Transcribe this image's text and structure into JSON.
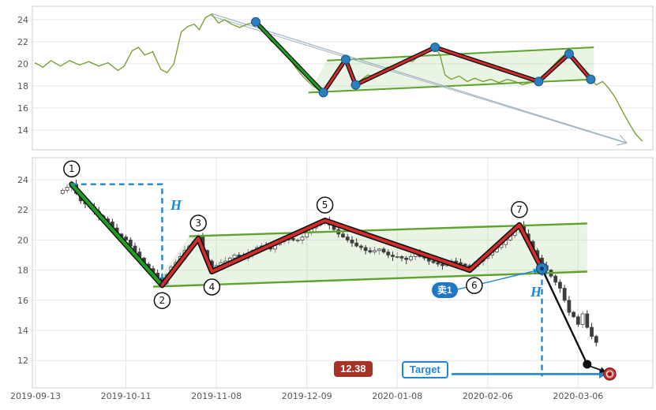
{
  "colors": {
    "background": "#ffffff",
    "grid": "#e7e7e7",
    "panel_border": "#cccccc",
    "axis_text": "#555555",
    "price_line": "#7aa238",
    "zigzag_red": "#d42b2b",
    "zigzag_outline": "#111111",
    "impulse_green": "#1f9e23",
    "channel_green": "#5ea32e",
    "channel_fill": "rgba(160,205,130,0.22)",
    "pivot_dot": "#2a7fc1",
    "annotation_blue": "#1e88d2",
    "candle_up_fill": "#ffffff",
    "candle_down_fill": "#3d3d3d",
    "candle_stroke": "#444444",
    "projection_black": "#111111",
    "target_marker_red": "#d63a3a",
    "badge_price_bg": "#a93226",
    "badge_sell_bg": "#1e78c8",
    "trend_arrow": "#9fb4c0"
  },
  "annotations": {
    "h_label": "H",
    "sell_badge": "卖1",
    "target_badge": "Target",
    "price_badge": "12.38"
  },
  "chart_data": [
    {
      "id": "overview",
      "type": "line",
      "ylim": [
        12.2,
        25.2
      ],
      "yticks": [
        24,
        22,
        20,
        18,
        16,
        14
      ],
      "xlim": [
        0,
        100
      ],
      "price_line": [
        [
          0.4,
          20.1
        ],
        [
          1.7,
          19.7
        ],
        [
          3.0,
          20.3
        ],
        [
          4.5,
          19.8
        ],
        [
          6.0,
          20.3
        ],
        [
          7.6,
          19.9
        ],
        [
          9.1,
          20.2
        ],
        [
          10.7,
          19.8
        ],
        [
          12.2,
          20.1
        ],
        [
          13.8,
          19.4
        ],
        [
          14.8,
          19.8
        ],
        [
          16.1,
          21.2
        ],
        [
          17.1,
          21.5
        ],
        [
          18.1,
          20.8
        ],
        [
          19.4,
          21.1
        ],
        [
          20.7,
          19.5
        ],
        [
          21.7,
          19.2
        ],
        [
          22.8,
          20.0
        ],
        [
          24.0,
          22.9
        ],
        [
          25.1,
          23.4
        ],
        [
          26.1,
          23.6
        ],
        [
          26.9,
          23.1
        ],
        [
          27.9,
          24.2
        ],
        [
          28.9,
          24.5
        ],
        [
          30.0,
          23.7
        ],
        [
          31.0,
          24.0
        ],
        [
          32.1,
          23.6
        ],
        [
          33.4,
          23.3
        ],
        [
          34.7,
          23.6
        ],
        [
          36.0,
          23.8
        ],
        [
          37.3,
          22.9
        ],
        [
          38.6,
          22.0
        ],
        [
          39.8,
          21.5
        ],
        [
          41.1,
          20.8
        ],
        [
          42.4,
          19.7
        ],
        [
          43.7,
          18.8
        ],
        [
          45.0,
          18.1
        ],
        [
          46.0,
          17.7
        ],
        [
          46.9,
          17.4
        ],
        [
          47.9,
          18.3
        ],
        [
          49.0,
          19.3
        ],
        [
          49.7,
          20.0
        ],
        [
          50.5,
          20.4
        ],
        [
          51.3,
          19.0
        ],
        [
          52.1,
          18.1
        ],
        [
          53.1,
          18.6
        ],
        [
          54.1,
          19.0
        ],
        [
          55.1,
          18.8
        ],
        [
          56.2,
          19.3
        ],
        [
          57.2,
          19.7
        ],
        [
          58.2,
          19.5
        ],
        [
          59.3,
          20.0
        ],
        [
          60.3,
          20.3
        ],
        [
          61.3,
          20.2
        ],
        [
          62.3,
          20.8
        ],
        [
          63.4,
          21.2
        ],
        [
          64.9,
          21.5
        ],
        [
          65.7,
          20.8
        ],
        [
          66.5,
          19.0
        ],
        [
          67.5,
          18.6
        ],
        [
          68.8,
          18.9
        ],
        [
          70.1,
          18.4
        ],
        [
          71.3,
          18.7
        ],
        [
          72.6,
          18.4
        ],
        [
          73.9,
          18.6
        ],
        [
          75.2,
          18.3
        ],
        [
          76.5,
          18.6
        ],
        [
          77.8,
          18.4
        ],
        [
          79.0,
          18.1
        ],
        [
          80.3,
          18.3
        ],
        [
          81.6,
          18.4
        ],
        [
          82.6,
          19.0
        ],
        [
          83.7,
          19.7
        ],
        [
          84.7,
          20.3
        ],
        [
          85.7,
          20.8
        ],
        [
          86.5,
          20.9
        ],
        [
          87.5,
          20.0
        ],
        [
          88.6,
          19.3
        ],
        [
          90.0,
          18.6
        ],
        [
          90.9,
          18.1
        ],
        [
          91.9,
          18.4
        ],
        [
          92.9,
          17.8
        ],
        [
          94.0,
          16.9
        ],
        [
          95.0,
          15.8
        ],
        [
          95.8,
          15.0
        ],
        [
          96.5,
          14.3
        ],
        [
          97.3,
          13.6
        ],
        [
          98.3,
          13.0
        ]
      ],
      "green_segment": [
        [
          36.0,
          23.8
        ],
        [
          46.9,
          17.4
        ]
      ],
      "zigzag": [
        [
          46.9,
          17.4
        ],
        [
          50.5,
          20.4
        ],
        [
          52.1,
          18.1
        ],
        [
          64.9,
          21.5
        ],
        [
          81.6,
          18.4
        ],
        [
          86.5,
          20.9
        ],
        [
          90.0,
          18.6
        ]
      ],
      "pivot_dots": [
        [
          36.0,
          23.8
        ],
        [
          46.9,
          17.4
        ],
        [
          50.5,
          20.4
        ],
        [
          52.1,
          18.1
        ],
        [
          64.9,
          21.5
        ],
        [
          81.6,
          18.4
        ],
        [
          86.5,
          20.9
        ],
        [
          90.0,
          18.6
        ]
      ],
      "channel": {
        "upper": [
          [
            47.5,
            20.3
          ],
          [
            90.5,
            21.5
          ]
        ],
        "lower": [
          [
            44.5,
            17.4
          ],
          [
            90.5,
            18.6
          ]
        ]
      },
      "trend_arrow": [
        [
          28.9,
          24.55
        ],
        [
          95.8,
          12.85
        ]
      ]
    },
    {
      "id": "detail",
      "type": "candlestick",
      "ylim": [
        10.2,
        25.5
      ],
      "yticks": [
        24,
        22,
        20,
        18,
        16,
        14,
        12
      ],
      "xlim": [
        0,
        136
      ],
      "xticks": [
        {
          "i": 0,
          "label": "2019-09-13"
        },
        {
          "i": 20,
          "label": "2019-10-11"
        },
        {
          "i": 40,
          "label": "2019-11-08"
        },
        {
          "i": 60,
          "label": "2019-12-09"
        },
        {
          "i": 80,
          "label": "2020-01-08"
        },
        {
          "i": 100,
          "label": "2020-02-06"
        },
        {
          "i": 120,
          "label": "2020-03-06"
        }
      ],
      "first_candle_index": 6,
      "closes": [
        23.3,
        23.5,
        23.7,
        23.1,
        22.6,
        22.4,
        22.2,
        21.9,
        21.6,
        21.4,
        21.2,
        20.8,
        20.4,
        20.2,
        20.0,
        19.6,
        19.2,
        18.8,
        18.4,
        18.1,
        17.8,
        17.5,
        17.1,
        17.7,
        18.2,
        18.5,
        18.9,
        19.3,
        19.6,
        19.9,
        20.2,
        19.3,
        18.6,
        18.0,
        18.3,
        18.5,
        18.6,
        18.8,
        19.0,
        18.9,
        18.8,
        19.1,
        19.3,
        19.5,
        19.6,
        19.5,
        19.4,
        19.7,
        19.9,
        20.0,
        20.1,
        20.0,
        20.0,
        20.2,
        20.5,
        20.8,
        21.0,
        21.2,
        21.3,
        21.0,
        20.7,
        20.4,
        20.2,
        20.0,
        19.8,
        19.6,
        19.5,
        19.3,
        19.2,
        19.3,
        19.4,
        19.2,
        19.0,
        18.9,
        18.9,
        18.8,
        18.7,
        18.9,
        19.1,
        18.9,
        18.8,
        18.6,
        18.5,
        18.4,
        18.3,
        18.4,
        18.6,
        18.5,
        18.4,
        18.3,
        18.1,
        18.4,
        18.6,
        18.8,
        19.0,
        19.2,
        19.5,
        19.7,
        20.0,
        20.3,
        20.7,
        21.0,
        20.4,
        19.9,
        19.3,
        18.8,
        18.3,
        18.0,
        17.6,
        17.2,
        16.8,
        16.0,
        15.2,
        14.9,
        14.4,
        15.1,
        14.2,
        13.6,
        13.2
      ],
      "wave_points": [
        {
          "n": "1",
          "i": 8,
          "v": 23.7,
          "side": "above"
        },
        {
          "n": "2",
          "i": 28,
          "v": 17.0,
          "side": "below"
        },
        {
          "n": "3",
          "i": 36,
          "v": 20.1,
          "side": "above"
        },
        {
          "n": "4",
          "i": 39,
          "v": 17.9,
          "side": "below"
        },
        {
          "n": "5",
          "i": 64,
          "v": 21.3,
          "side": "above"
        },
        {
          "n": "6",
          "i": 96,
          "v": 18.0,
          "side": "below",
          "dx": 6
        },
        {
          "n": "7",
          "i": 107,
          "v": 21.0,
          "side": "above"
        }
      ],
      "green_segment": [
        [
          8,
          23.7
        ],
        [
          28,
          17.0
        ]
      ],
      "zigzag": [
        [
          28,
          17.0
        ],
        [
          36,
          20.1
        ],
        [
          39,
          17.9
        ],
        [
          64,
          21.3
        ],
        [
          96,
          18.0
        ],
        [
          107,
          21.0
        ],
        [
          112,
          18.1
        ]
      ],
      "endpoint_dot": [
        112,
        18.1
      ],
      "channel": {
        "upper": [
          [
            34,
            20.25
          ],
          [
            122,
            21.1
          ]
        ],
        "lower": [
          [
            26,
            16.9
          ],
          [
            122,
            17.9
          ]
        ]
      },
      "h_measure_1": [
        [
          8,
          23.7
        ],
        [
          28,
          23.7
        ],
        [
          28,
          17.1
        ]
      ],
      "h_measure_2": [
        [
          112,
          18.0
        ],
        [
          112,
          10.95
        ]
      ],
      "sell_pointer": [
        [
          93,
          16.7
        ],
        [
          111.2,
          18.0
        ]
      ],
      "target_arrow": [
        [
          92,
          11.1
        ],
        [
          126.3,
          11.1
        ]
      ],
      "projection_line": [
        [
          112,
          18.1
        ],
        [
          122,
          11.75
        ]
      ],
      "projection_dot": [
        122,
        11.75
      ],
      "projection_arrow": [
        [
          122.6,
          11.62
        ],
        [
          126.1,
          11.25
        ]
      ],
      "target_point": [
        127,
        11.1
      ]
    }
  ]
}
